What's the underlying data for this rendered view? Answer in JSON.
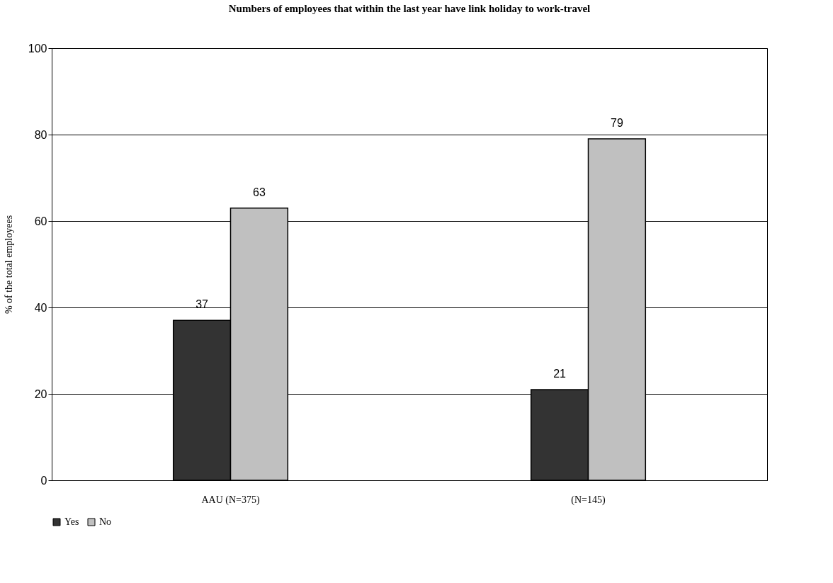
{
  "chart_data": {
    "type": "bar",
    "title": "Numbers of employees that within the last year have link holiday to work-travel",
    "ylabel": "% of the total employees",
    "categories": [
      "AAU (N=375)",
      "(N=145)"
    ],
    "series": [
      {
        "name": "Yes",
        "color": "#333333",
        "values": [
          37,
          21
        ]
      },
      {
        "name": "No",
        "color": "#c0c0c0",
        "values": [
          63,
          79
        ]
      }
    ],
    "ylim": [
      0,
      100
    ],
    "yticks": [
      0,
      20,
      40,
      60,
      80,
      100
    ],
    "grid": "y",
    "legend": "bottom",
    "data_labels": true
  }
}
